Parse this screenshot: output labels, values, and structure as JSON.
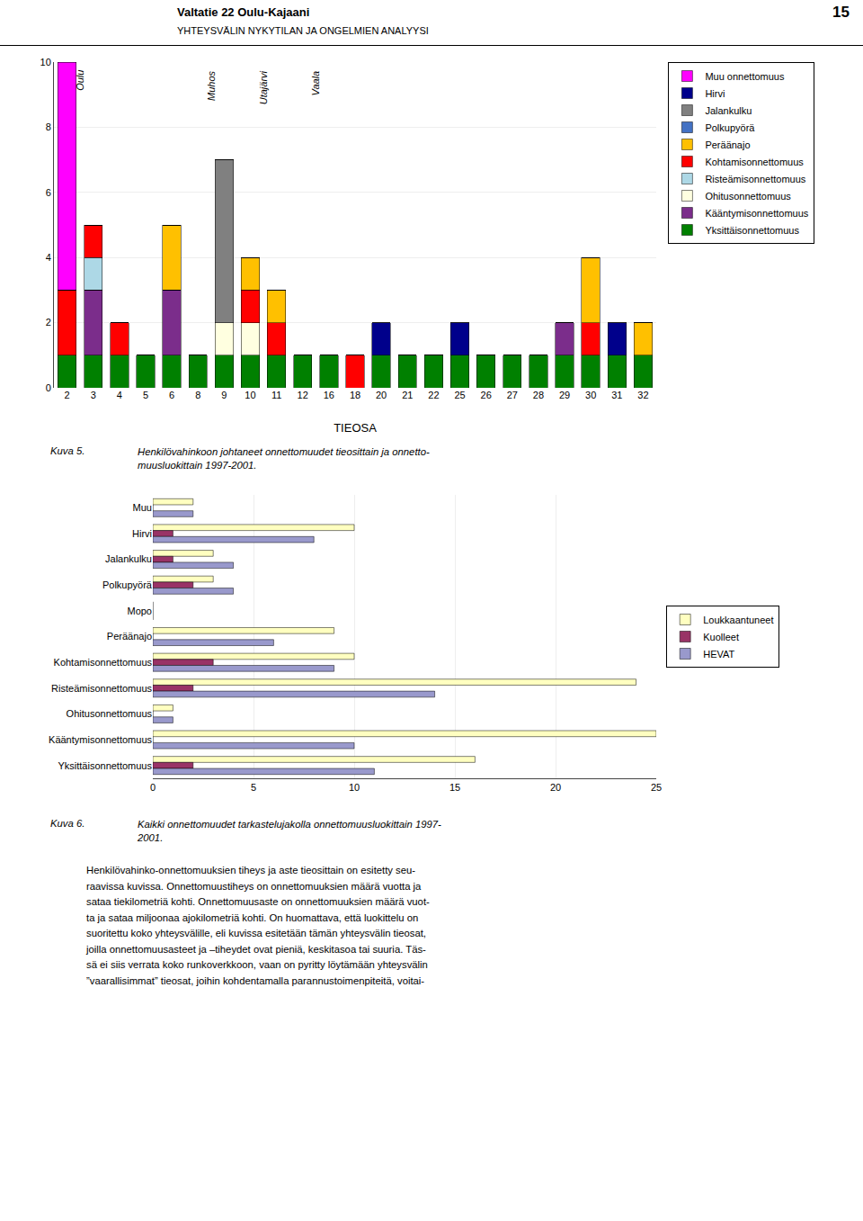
{
  "title": "Valtatie 22 Oulu-Kajaani",
  "subtitle": "YHTEYSVÄLIN NYKYTILAN JA ONGELMIEN ANALYYSI",
  "annotations": [
    {
      "text": "15"
    },
    {
      "text": "Henkilövahinko-onnettomuuksien tiheys ja aste tieosittain on esitetty seu-\nraavissa kuvissa. Onnettomuustiheys on onnettomuuksien määrä vuotta ja\nsataa tiekilometriä kohti. Onnettomuusaste on onnettomuuksien määrä vuot-\nta ja sataa miljoonaa ajokilometriä kohti. On huomattava, että luokittelu on\nsuoritettu koko yhteysvälille, eli kuvissa esitetään tämän yhteysvälin tieosat,\njoilla onnettomuusasteet ja –tiheydet ovat pieniä, keskitasoa tai suuria. Täs-\nsä ei siis verrata koko runkoverkkoon, vaan on pyritty löytämään yhteysvälin\n”vaarallisimmat” tieosat, joihin kohdentamalla parannustoimenpiteitä, voitai-"
    }
  ],
  "chart_data": [
    {
      "type": "bar",
      "stacked": true,
      "xlabel": "TIEOSA",
      "categories": [
        2,
        3,
        4,
        5,
        6,
        8,
        9,
        10,
        11,
        12,
        16,
        18,
        20,
        21,
        22,
        25,
        26,
        27,
        28,
        29,
        30,
        31,
        32
      ],
      "series": [
        {
          "name": "Yksittäisonnettomuus",
          "color": "#008000",
          "values": [
            1,
            1,
            1,
            1,
            1,
            1,
            1,
            1,
            1,
            1,
            1,
            0,
            1,
            1,
            1,
            1,
            1,
            1,
            1,
            1,
            1,
            1,
            1
          ]
        },
        {
          "name": "Kääntymisonnettomuus",
          "color": "#7B2D8B",
          "values": [
            0,
            2,
            0,
            0,
            2,
            0,
            0,
            0,
            0,
            0,
            0,
            0,
            0,
            0,
            0,
            0,
            0,
            0,
            0,
            1,
            0,
            0,
            0
          ]
        },
        {
          "name": "Ohitusonnettomuus",
          "color": "#FFFFE0",
          "values": [
            0,
            0,
            0,
            0,
            0,
            0,
            1,
            1,
            0,
            0,
            0,
            0,
            0,
            0,
            0,
            0,
            0,
            0,
            0,
            0,
            0,
            0,
            0
          ]
        },
        {
          "name": "Risteämisonnettomuus",
          "color": "#ADD8E6",
          "values": [
            0,
            1,
            0,
            0,
            0,
            0,
            0,
            0,
            0,
            0,
            0,
            0,
            0,
            0,
            0,
            0,
            0,
            0,
            0,
            0,
            0,
            0,
            0
          ]
        },
        {
          "name": "Kohtamisonnettomuus",
          "color": "#FF0000",
          "values": [
            2,
            1,
            1,
            0,
            0,
            0,
            0,
            1,
            1,
            0,
            0,
            1,
            0,
            0,
            0,
            0,
            0,
            0,
            0,
            0,
            1,
            0,
            0
          ]
        },
        {
          "name": "Peräänajo",
          "color": "#FFC000",
          "values": [
            0,
            0,
            0,
            0,
            2,
            0,
            0,
            1,
            1,
            0,
            0,
            0,
            0,
            0,
            0,
            0,
            0,
            0,
            0,
            0,
            2,
            0,
            1
          ]
        },
        {
          "name": "Polkupyörä",
          "color": "#4472C4",
          "values": [
            0,
            0,
            0,
            0,
            0,
            0,
            0,
            0,
            0,
            0,
            0,
            0,
            0,
            0,
            0,
            0,
            0,
            0,
            0,
            0,
            0,
            0,
            0
          ]
        },
        {
          "name": "Jalankulku",
          "color": "#808080",
          "values": [
            0,
            0,
            0,
            0,
            0,
            0,
            5,
            0,
            0,
            0,
            0,
            0,
            0,
            0,
            0,
            0,
            0,
            0,
            0,
            0,
            0,
            0,
            0
          ]
        },
        {
          "name": "Hirvi",
          "color": "#00008B",
          "values": [
            0,
            0,
            0,
            0,
            0,
            0,
            0,
            0,
            0,
            0,
            0,
            0,
            1,
            0,
            0,
            1,
            0,
            0,
            0,
            0,
            0,
            1,
            0
          ]
        },
        {
          "name": "Muu onnettomuus",
          "color": "#FF00FF",
          "values": [
            7,
            0,
            0,
            0,
            0,
            0,
            0,
            0,
            0,
            0,
            0,
            0,
            0,
            0,
            0,
            0,
            0,
            0,
            0,
            0,
            0,
            0,
            0
          ]
        }
      ],
      "ylim": [
        0,
        10
      ],
      "yticks": [
        0,
        2,
        4,
        6,
        8,
        10
      ],
      "grid": true,
      "legend": "upper right",
      "annotations": [
        {
          "text": "Oulu",
          "x": 0.5
        },
        {
          "text": "Muhos",
          "x": 5.5
        },
        {
          "text": "Utajärvi",
          "x": 7.5
        },
        {
          "text": "Vaala",
          "x": 9.5
        },
        {
          "text": "Kuva 5."
        },
        {
          "text": "Henkilövahinkoon johtaneet onnettomuudet tieosittain ja onnetto-\nmuusluokittain 1997-2001."
        }
      ]
    },
    {
      "type": "bar",
      "orientation": "horizontal",
      "categories": [
        "Muu",
        "Hirvi",
        "Jalankulku",
        "Polkupyörä",
        "Mopo",
        "Peräänajo",
        "Kohtamisonnettomuus",
        "Risteämisonnettomuus",
        "Ohitusonnettomuus",
        "Kääntymisonnettomuus",
        "Yksittäisonnettomuus"
      ],
      "series": [
        {
          "name": "Loukkaantuneet",
          "color": "#FFFFC0",
          "values": [
            2,
            10,
            3,
            3,
            0,
            9,
            10,
            24,
            1,
            25,
            16
          ]
        },
        {
          "name": "Kuolleet",
          "color": "#993366",
          "values": [
            0,
            1,
            1,
            2,
            0,
            0,
            3,
            2,
            0,
            0,
            2
          ]
        },
        {
          "name": "HEVAT",
          "color": "#9999CC",
          "values": [
            2,
            8,
            4,
            4,
            0,
            6,
            9,
            14,
            1,
            10,
            11
          ]
        }
      ],
      "xlim": [
        0,
        25
      ],
      "xticks": [
        0,
        5,
        10,
        15,
        20,
        25
      ],
      "grid": true,
      "legend": "right",
      "annotations": [
        {
          "text": "Kuva 6."
        },
        {
          "text": "Kaikki onnettomuudet tarkastelujakolla onnettomuusluokittain 1997-\n2001."
        }
      ]
    }
  ]
}
